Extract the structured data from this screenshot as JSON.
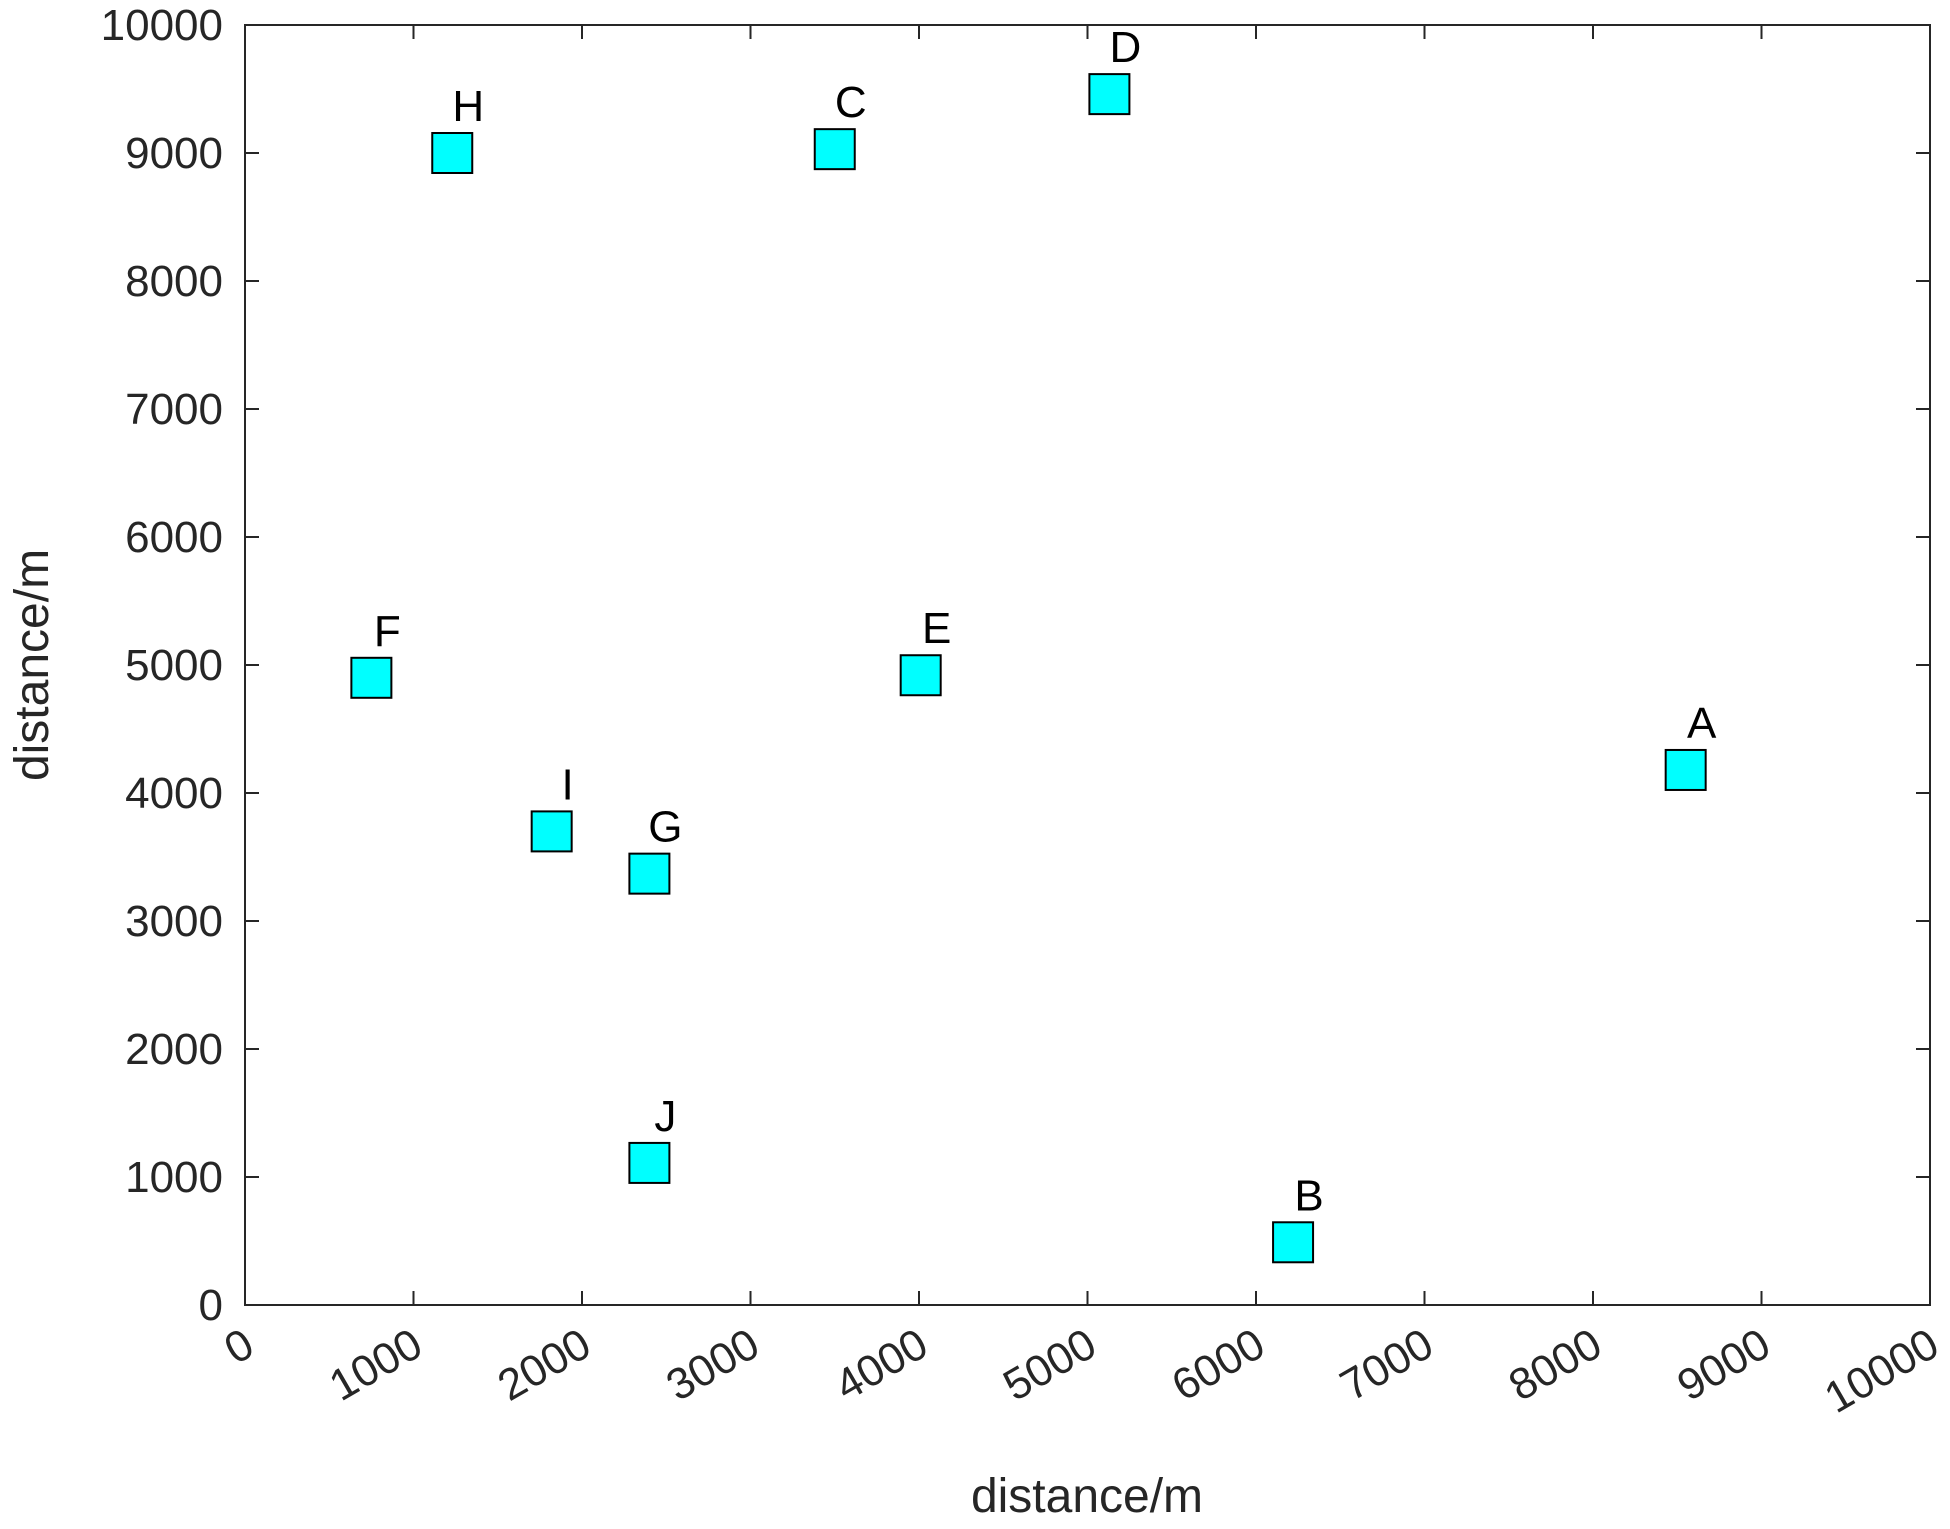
{
  "chart_data": {
    "type": "scatter",
    "title": "",
    "xlabel": "distance/m",
    "ylabel": "distance/m",
    "xlim": [
      0,
      10000
    ],
    "ylim": [
      0,
      10000
    ],
    "xticks": [
      "0",
      "1000",
      "2000",
      "3000",
      "4000",
      "5000",
      "6000",
      "7000",
      "8000",
      "9000",
      "10000"
    ],
    "yticks": [
      "0",
      "1000",
      "2000",
      "3000",
      "4000",
      "5000",
      "6000",
      "7000",
      "8000",
      "9000",
      "10000"
    ],
    "grid": false,
    "marker": "square",
    "marker_color": "#00ffff",
    "points": [
      {
        "label": "A",
        "x": 8550,
        "y": 4180
      },
      {
        "label": "B",
        "x": 6220,
        "y": 490
      },
      {
        "label": "C",
        "x": 3500,
        "y": 9030
      },
      {
        "label": "D",
        "x": 5130,
        "y": 9460
      },
      {
        "label": "E",
        "x": 4010,
        "y": 4920
      },
      {
        "label": "F",
        "x": 750,
        "y": 4900
      },
      {
        "label": "G",
        "x": 2400,
        "y": 3370
      },
      {
        "label": "H",
        "x": 1230,
        "y": 9000
      },
      {
        "label": "I",
        "x": 1820,
        "y": 3700
      },
      {
        "label": "J",
        "x": 2400,
        "y": 1110
      }
    ]
  }
}
